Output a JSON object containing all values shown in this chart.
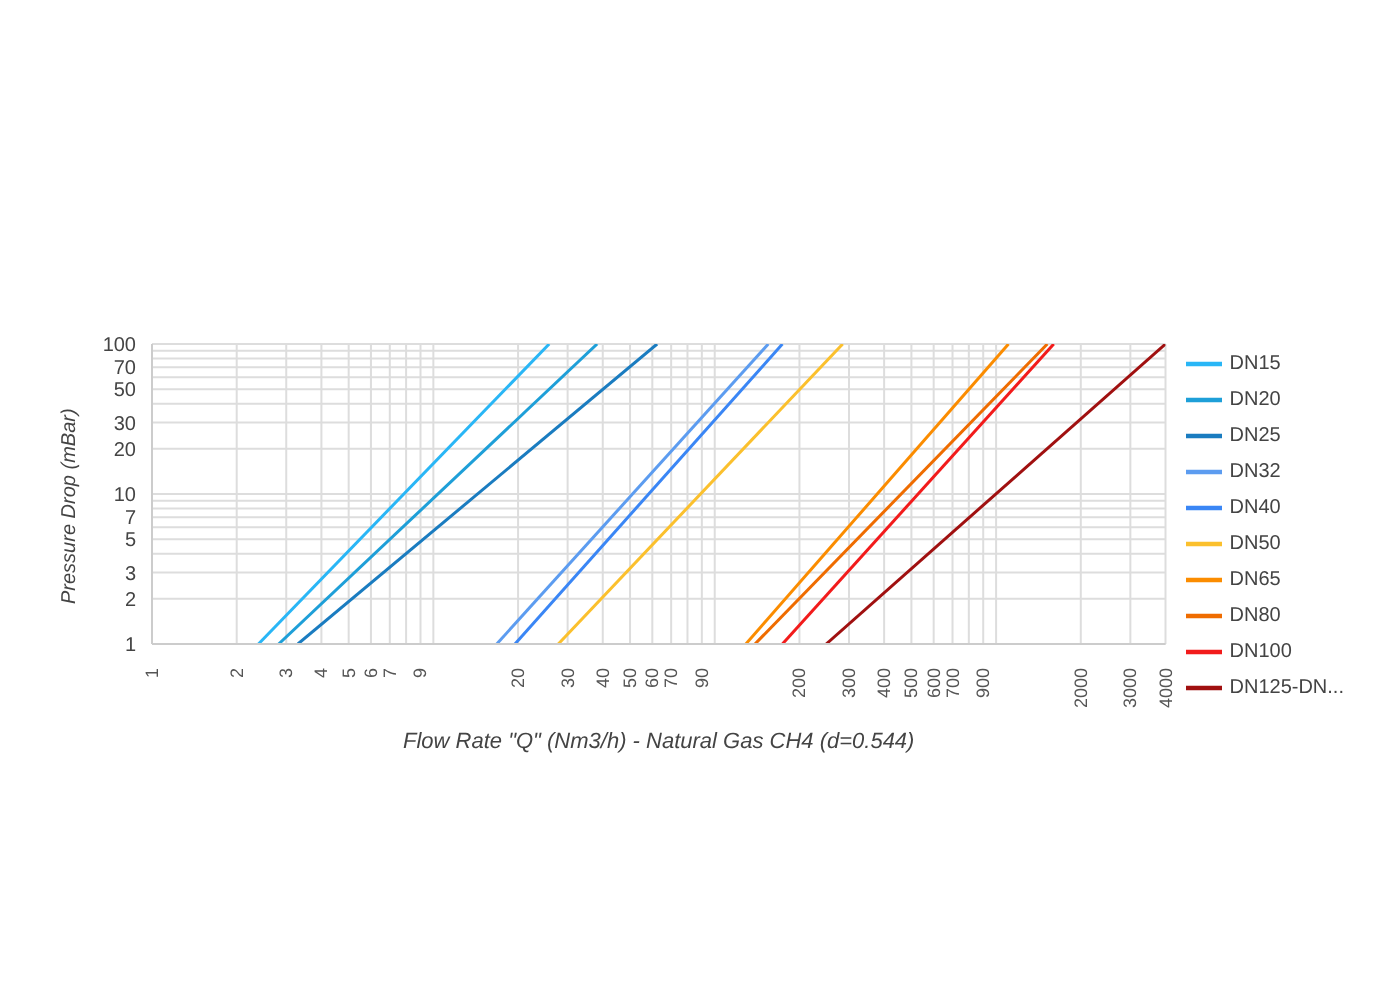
{
  "chart_data": {
    "type": "line",
    "xlabel": "Flow Rate \"Q\" (Nm3/h) - Natural Gas CH4 (d=0.544)",
    "ylabel": "Pressure Drop (mBar)",
    "log": "xy",
    "grid": true,
    "legend": "right",
    "marker": "none",
    "line_style": "solid",
    "xlim": [
      1,
      4000
    ],
    "ylim": [
      1,
      100
    ],
    "xticks": [
      1,
      2,
      3,
      4,
      5,
      6,
      7,
      {
        "value": 8,
        "label": null
      },
      9,
      {
        "value": 10,
        "label": null
      },
      20,
      30,
      40,
      50,
      60,
      70,
      {
        "value": 80,
        "label": null
      },
      90,
      {
        "value": 100,
        "label": null
      },
      200,
      300,
      400,
      500,
      600,
      700,
      {
        "value": 800,
        "label": null
      },
      900,
      {
        "value": 1000,
        "label": null
      },
      2000,
      3000,
      4000
    ],
    "yticks": [
      1,
      2,
      3,
      {
        "value": 4,
        "label": null
      },
      5,
      {
        "value": 6,
        "label": null
      },
      7,
      {
        "value": 8,
        "label": null
      },
      {
        "value": 9,
        "label": null
      },
      10,
      20,
      30,
      {
        "value": 40,
        "label": null
      },
      50,
      {
        "value": 60,
        "label": null
      },
      70,
      {
        "value": 80,
        "label": null
      },
      {
        "value": 90,
        "label": null
      },
      100
    ],
    "series": [
      {
        "name": "DN15",
        "color": "#29b6f6",
        "x": [
          2.39,
          25.8
        ],
        "values": [
          1,
          100
        ]
      },
      {
        "name": "DN20",
        "color": "#1e9fd8",
        "x": [
          2.82,
          38.2
        ],
        "values": [
          1,
          100
        ]
      },
      {
        "name": "DN25",
        "color": "#1a7cc0",
        "x": [
          3.3,
          62.4
        ],
        "values": [
          1,
          100
        ]
      },
      {
        "name": "DN32",
        "color": "#5c9cf0",
        "x": [
          16.8,
          155
        ],
        "values": [
          1,
          100
        ]
      },
      {
        "name": "DN40",
        "color": "#3a86f5",
        "x": [
          19.5,
          174
        ],
        "values": [
          1,
          100
        ]
      },
      {
        "name": "DN50",
        "color": "#fbc02d",
        "x": [
          27.8,
          285
        ],
        "values": [
          1,
          100
        ]
      },
      {
        "name": "DN65",
        "color": "#fb8c00",
        "x": [
          129,
          1107
        ],
        "values": [
          1,
          100
        ]
      },
      {
        "name": "DN80",
        "color": "#ef6c00",
        "x": [
          139,
          1521
        ],
        "values": [
          1,
          100
        ]
      },
      {
        "name": "DN100",
        "color": "#f21b1b",
        "x": [
          174,
          1603
        ],
        "values": [
          1,
          100
        ]
      },
      {
        "name": "DN125-DN...",
        "color": "#a01010",
        "x": [
          249,
          4000
        ],
        "values": [
          1,
          100
        ]
      }
    ]
  }
}
